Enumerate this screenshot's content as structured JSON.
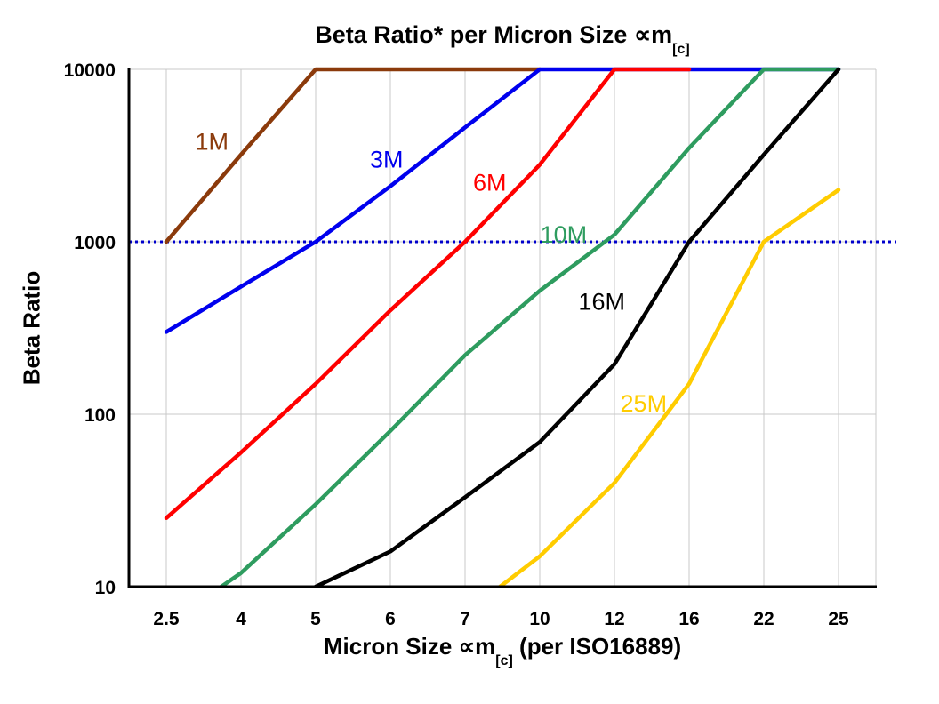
{
  "chart_data": {
    "type": "line",
    "title_parts": {
      "main": "Beta Ratio* per Micron Size ",
      "symbol": "∝m",
      "sub": "[c]"
    },
    "xlabel_parts": {
      "pre": "Micron Size ",
      "symbol": "∝m",
      "sub": "[c]",
      "post": " (per ISO16889)"
    },
    "ylabel": "Beta Ratio",
    "categories": [
      "2.5",
      "4",
      "5",
      "6",
      "7",
      "10",
      "12",
      "16",
      "22",
      "25"
    ],
    "yscale": "log",
    "ylim": [
      10,
      10000
    ],
    "yticks": [
      10,
      100,
      1000,
      10000
    ],
    "grid": true,
    "grid_color": "#c9c9c9",
    "frame_color": "#000000",
    "reference_line": {
      "value": 1000,
      "color": "#0000cc",
      "style": "dotted"
    },
    "series": [
      {
        "name": "1M",
        "color": "#8b3a0b",
        "values": [
          1000,
          3200,
          10000,
          10000,
          10000,
          10000,
          null,
          null,
          null,
          null
        ],
        "label_pos": {
          "cat": 0.61,
          "value": 3800
        }
      },
      {
        "name": "3M",
        "color": "#0000ee",
        "values": [
          300,
          550,
          1000,
          2100,
          4600,
          10000,
          10000,
          10000,
          10000,
          10000
        ],
        "label_pos": {
          "cat": 2.95,
          "value": 3000
        }
      },
      {
        "name": "6M",
        "color": "#ff0000",
        "values": [
          25,
          60,
          150,
          400,
          1000,
          2800,
          10000,
          10000,
          null,
          null
        ],
        "label_pos": {
          "cat": 4.33,
          "value": 2200
        }
      },
      {
        "name": "10M",
        "color": "#2e9c5f",
        "values": [
          6,
          12,
          30,
          80,
          220,
          520,
          1100,
          3500,
          10000,
          10000
        ],
        "label_pos": {
          "cat": 5.32,
          "value": 1100
        }
      },
      {
        "name": "16M",
        "color": "#000000",
        "values": [
          null,
          null,
          10,
          16,
          33,
          69,
          195,
          1000,
          3200,
          10000
        ],
        "label_pos": {
          "cat": 5.83,
          "value": 450
        }
      },
      {
        "name": "25M",
        "color": "#ffcc00",
        "values": [
          null,
          null,
          null,
          null,
          7,
          15,
          40,
          150,
          1000,
          2000
        ],
        "label_pos": {
          "cat": 6.39,
          "value": 115
        }
      }
    ]
  }
}
